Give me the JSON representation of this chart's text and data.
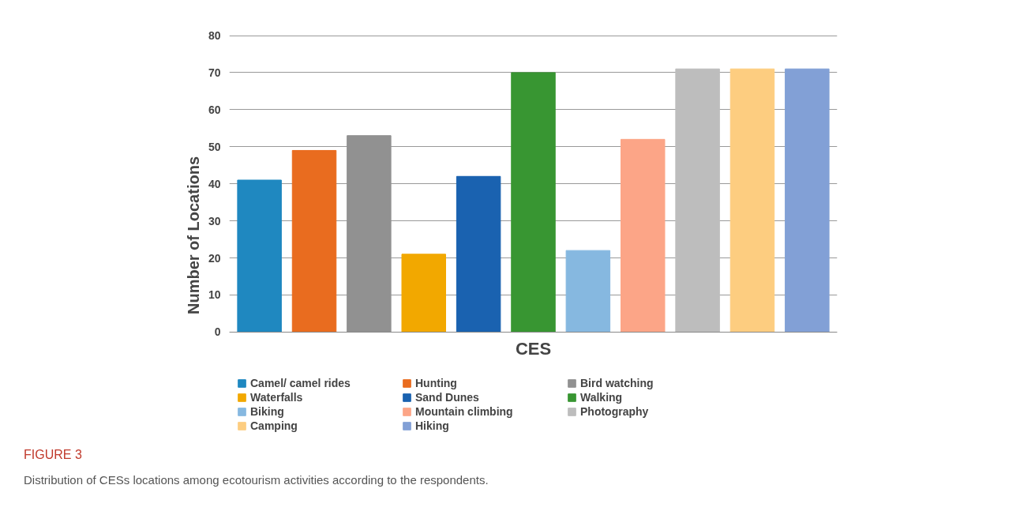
{
  "chart_data": {
    "type": "bar",
    "xlabel": "CES",
    "ylabel": "Number of Locations",
    "categories": [
      null,
      null,
      null,
      null,
      null,
      null,
      null,
      null,
      null,
      null,
      null
    ],
    "series": [
      {
        "name": "Camel/ camel rides",
        "color": "#1f88c0",
        "values": [
          41,
          null,
          null,
          null,
          null,
          null,
          null,
          null,
          null,
          null,
          null
        ]
      },
      {
        "name": "Hunting",
        "color": "#e96c1f",
        "values": [
          null,
          49,
          null,
          null,
          null,
          null,
          null,
          null,
          null,
          null,
          null
        ]
      },
      {
        "name": "Bird watching",
        "color": "#919191",
        "values": [
          null,
          null,
          53,
          null,
          null,
          null,
          null,
          null,
          null,
          null,
          null
        ]
      },
      {
        "name": "Waterfalls",
        "color": "#f2a800",
        "values": [
          null,
          null,
          null,
          21,
          null,
          null,
          null,
          null,
          null,
          null,
          null
        ]
      },
      {
        "name": "Sand Dunes",
        "color": "#1a62b0",
        "values": [
          null,
          null,
          null,
          null,
          42,
          null,
          null,
          null,
          null,
          null,
          null
        ]
      },
      {
        "name": "Walking",
        "color": "#389632",
        "values": [
          null,
          null,
          null,
          null,
          null,
          70,
          null,
          null,
          null,
          null,
          null
        ]
      },
      {
        "name": "Biking",
        "color": "#86b8e0",
        "values": [
          null,
          null,
          null,
          null,
          null,
          null,
          22,
          null,
          null,
          null,
          null
        ]
      },
      {
        "name": "Mountain climbing",
        "color": "#fca587",
        "values": [
          null,
          null,
          null,
          null,
          null,
          null,
          null,
          52,
          null,
          null,
          null
        ]
      },
      {
        "name": "Photography",
        "color": "#bdbdbd",
        "values": [
          null,
          null,
          null,
          null,
          null,
          null,
          null,
          null,
          71,
          null,
          null
        ]
      },
      {
        "name": "Camping",
        "color": "#fdcd80",
        "values": [
          null,
          null,
          null,
          null,
          null,
          null,
          null,
          null,
          null,
          71,
          null
        ]
      },
      {
        "name": "Hiking",
        "color": "#82a0d6",
        "values": [
          null,
          null,
          null,
          null,
          null,
          null,
          null,
          null,
          null,
          null,
          71
        ]
      }
    ],
    "ylim": [
      0,
      80
    ],
    "yticks": [
      0,
      10,
      20,
      30,
      40,
      50,
      60,
      70,
      80
    ],
    "grid": "y",
    "legend": "bottom",
    "annotations": [
      "FIGURE 3",
      "Distribution of CESs locations among ecotourism activities according to the respondents."
    ]
  }
}
